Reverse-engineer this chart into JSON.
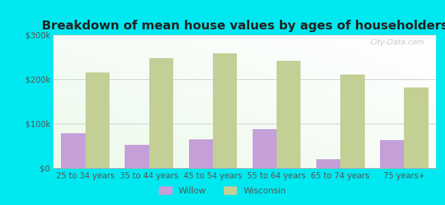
{
  "title": "Breakdown of mean house values by ages of householders",
  "categories": [
    "25 to 34 years",
    "35 to 44 years",
    "45 to 54 years",
    "55 to 64 years",
    "65 to 74 years",
    "75 years+"
  ],
  "willow_values": [
    78000,
    52000,
    65000,
    88000,
    20000,
    63000
  ],
  "wisconsin_values": [
    215000,
    248000,
    258000,
    242000,
    210000,
    182000
  ],
  "willow_color": "#c49fd8",
  "wisconsin_color": "#c4cf96",
  "background_color": "#00e8f0",
  "ylim": [
    0,
    300000
  ],
  "yticks": [
    0,
    100000,
    200000,
    300000
  ],
  "ytick_labels": [
    "$0",
    "$100k",
    "$200k",
    "$300k"
  ],
  "title_fontsize": 13,
  "tick_fontsize": 8.5,
  "legend_labels": [
    "Willow",
    "Wisconsin"
  ],
  "bar_width": 0.38,
  "watermark": "City-Data.com"
}
